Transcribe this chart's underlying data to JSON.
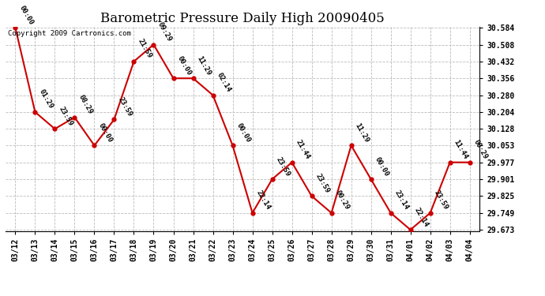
{
  "title": "Barometric Pressure Daily High 20090405",
  "copyright": "Copyright 2009 Cartronics.com",
  "dates": [
    "03/12",
    "03/13",
    "03/14",
    "03/15",
    "03/16",
    "03/17",
    "03/18",
    "03/19",
    "03/20",
    "03/21",
    "03/22",
    "03/23",
    "03/24",
    "03/25",
    "03/26",
    "03/27",
    "03/28",
    "03/29",
    "03/30",
    "03/31",
    "04/01",
    "04/02",
    "04/03",
    "04/04"
  ],
  "values": [
    30.584,
    30.204,
    30.128,
    30.18,
    30.053,
    30.17,
    30.432,
    30.508,
    30.356,
    30.356,
    30.28,
    30.053,
    29.749,
    29.901,
    29.977,
    29.825,
    29.749,
    30.053,
    29.901,
    29.749,
    29.673,
    29.749,
    29.977,
    29.977
  ],
  "times": [
    "00:00",
    "01:29",
    "23:59",
    "08:29",
    "00:00",
    "23:59",
    "21:59",
    "09:29",
    "00:00",
    "11:29",
    "02:14",
    "00:00",
    "22:14",
    "23:59",
    "21:44",
    "23:59",
    "00:29",
    "11:29",
    "00:00",
    "23:14",
    "22:14",
    "23:59",
    "11:44",
    "00:29"
  ],
  "ylim_min": 29.673,
  "ylim_max": 30.584,
  "yticks": [
    29.673,
    29.749,
    29.825,
    29.901,
    29.977,
    30.053,
    30.128,
    30.204,
    30.28,
    30.356,
    30.432,
    30.508,
    30.584
  ],
  "line_color": "#cc0000",
  "marker_color": "#cc0000",
  "bg_color": "#ffffff",
  "grid_color": "#bbbbbb",
  "title_fontsize": 12,
  "label_fontsize": 6.5,
  "tick_fontsize": 7,
  "copyright_fontsize": 6.5
}
